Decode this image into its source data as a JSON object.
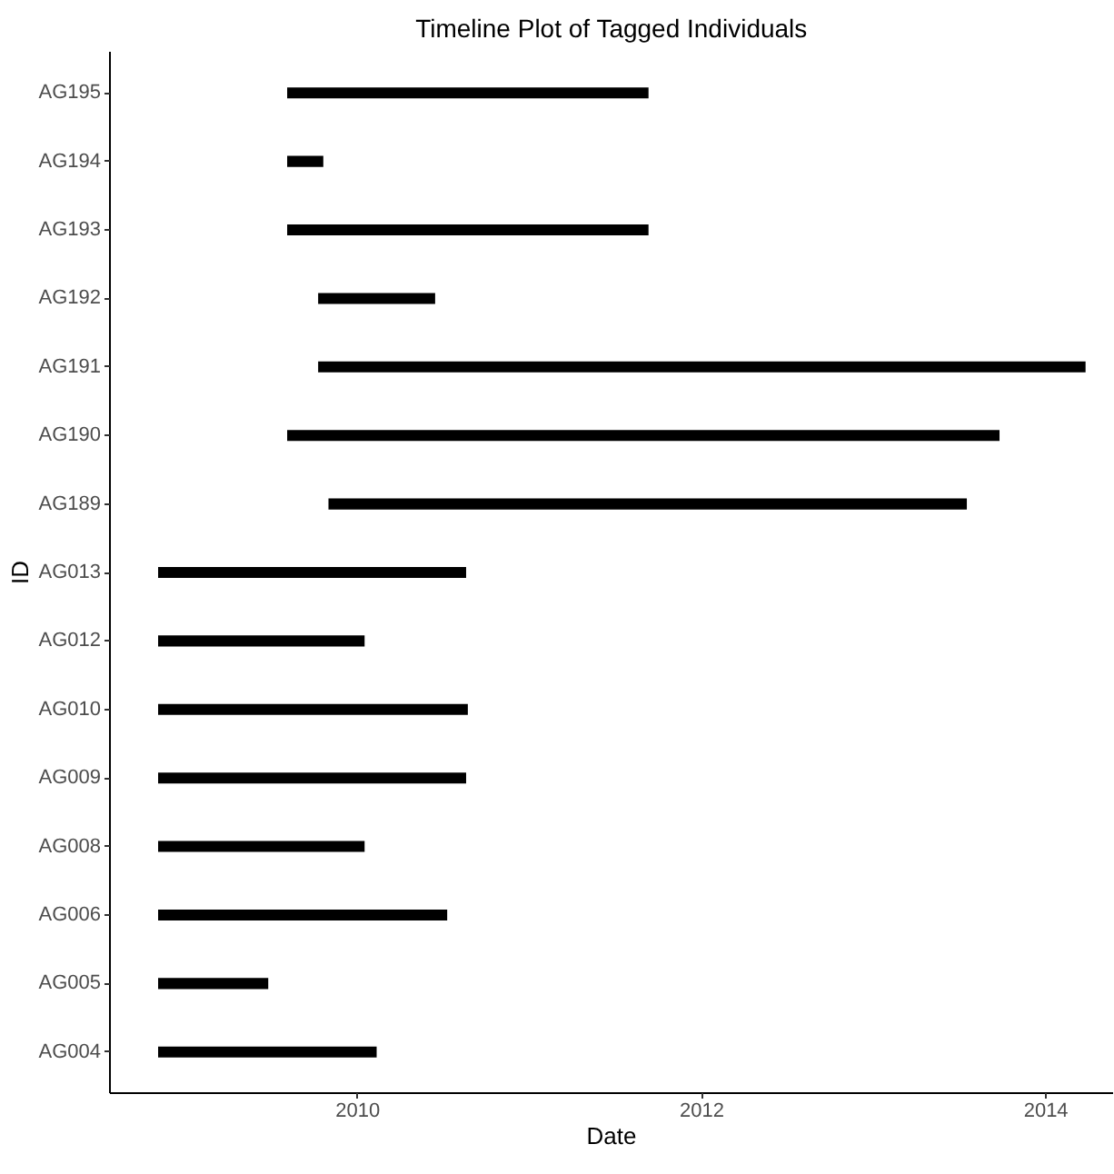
{
  "chart_data": {
    "type": "bar",
    "title": "Timeline Plot of Tagged Individuals",
    "xlabel": "Date",
    "ylabel": "ID",
    "orientation": "horizontal",
    "categories": [
      "AG195",
      "AG194",
      "AG193",
      "AG192",
      "AG191",
      "AG190",
      "AG189",
      "AG013",
      "AG012",
      "AG010",
      "AG009",
      "AG008",
      "AG006",
      "AG005",
      "AG004"
    ],
    "base": [
      2009.59,
      2009.59,
      2009.59,
      2009.77,
      2009.77,
      2009.59,
      2009.83,
      2008.84,
      2008.84,
      2008.84,
      2008.84,
      2008.84,
      2008.84,
      2008.84,
      2008.84
    ],
    "values": [
      2.1,
      0.21,
      2.1,
      0.68,
      4.46,
      4.14,
      3.71,
      1.79,
      1.2,
      1.8,
      1.79,
      1.2,
      1.68,
      0.64,
      1.27
    ],
    "color": "#000000",
    "xlim": [
      2008.56,
      2014.39
    ],
    "xticks": [
      2010,
      2012,
      2014
    ]
  }
}
